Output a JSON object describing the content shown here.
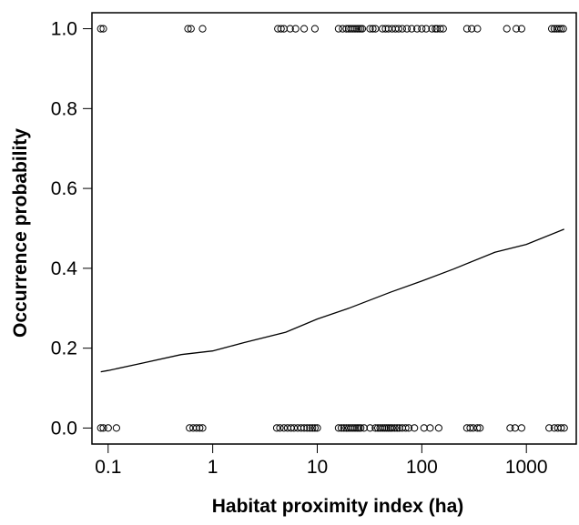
{
  "chart_data": {
    "type": "scatter",
    "title": "",
    "xlabel": "Habitat proximity index (ha)",
    "ylabel": "Occurrence probability",
    "x_scale": "log",
    "xlim": [
      0.07,
      3000
    ],
    "ylim": [
      -0.04,
      1.04
    ],
    "x_ticks": [
      0.1,
      1,
      10,
      100,
      1000
    ],
    "x_tick_labels": [
      "0.1",
      "1",
      "10",
      "100",
      "1000"
    ],
    "y_ticks": [
      0.0,
      0.2,
      0.4,
      0.6,
      0.8,
      1.0
    ],
    "y_tick_labels": [
      "0.0",
      "0.2",
      "0.4",
      "0.6",
      "0.8",
      "1.0"
    ],
    "grid": false,
    "legend": "none",
    "marker": "open-circle",
    "series": [
      {
        "role": "observed occurrence (y = 1)",
        "y": 1,
        "x": [
          0.085,
          0.09,
          0.58,
          0.62,
          0.8,
          4.2,
          4.5,
          4.8,
          5.5,
          6.2,
          7.5,
          9.5,
          16,
          17.5,
          19,
          20,
          21,
          22,
          23,
          24,
          25,
          26,
          27,
          32,
          34,
          36,
          42,
          45,
          48,
          52,
          56,
          60,
          65,
          72,
          80,
          90,
          100,
          110,
          125,
          135,
          140,
          150,
          160,
          270,
          300,
          340,
          650,
          800,
          900,
          1750,
          1850,
          1950,
          2050,
          2150,
          2250
        ]
      },
      {
        "role": "observed absence (y = 0)",
        "y": 0,
        "x": [
          0.085,
          0.09,
          0.1,
          0.12,
          0.6,
          0.65,
          0.7,
          0.75,
          0.8,
          4.1,
          4.4,
          4.8,
          5.2,
          5.6,
          6.0,
          6.5,
          7.0,
          7.5,
          8.0,
          8.5,
          9.0,
          9.5,
          10,
          16,
          17,
          18,
          19,
          20,
          21,
          22,
          23,
          24,
          25,
          26,
          28,
          32,
          36,
          38,
          40,
          42,
          44,
          46,
          48,
          50,
          52,
          55,
          58,
          61,
          65,
          70,
          75,
          85,
          105,
          120,
          145,
          270,
          290,
          310,
          340,
          360,
          700,
          780,
          900,
          1650,
          1850,
          2000,
          2150,
          2300
        ]
      },
      {
        "role": "fitted logistic curve",
        "type": "line",
        "x": [
          0.085,
          0.1,
          0.2,
          0.5,
          1,
          2,
          5,
          10,
          20,
          50,
          100,
          200,
          500,
          1000,
          2300
        ],
        "y": [
          0.141,
          0.144,
          0.161,
          0.184,
          0.193,
          0.214,
          0.24,
          0.273,
          0.3,
          0.34,
          0.368,
          0.398,
          0.44,
          0.46,
          0.498
        ]
      }
    ]
  }
}
